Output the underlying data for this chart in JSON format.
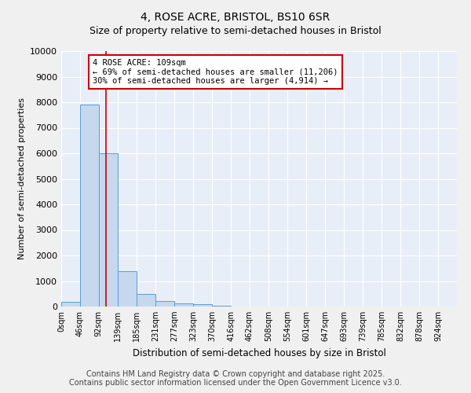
{
  "title": "4, ROSE ACRE, BRISTOL, BS10 6SR",
  "subtitle": "Size of property relative to semi-detached houses in Bristol",
  "xlabel": "Distribution of semi-detached houses by size in Bristol",
  "ylabel": "Number of semi-detached properties",
  "bar_color": "#c5d8ee",
  "bar_edge_color": "#5a9fd4",
  "background_color": "#e8eef8",
  "grid_color": "#ffffff",
  "fig_background": "#f0f0f0",
  "bins": [
    0,
    46,
    92,
    139,
    185,
    231,
    277,
    323,
    370,
    416,
    462,
    508,
    554,
    601,
    647,
    693,
    739,
    785,
    832,
    878,
    924,
    970
  ],
  "bin_labels": [
    "0sqm",
    "46sqm",
    "92sqm",
    "139sqm",
    "185sqm",
    "231sqm",
    "277sqm",
    "323sqm",
    "370sqm",
    "416sqm",
    "462sqm",
    "508sqm",
    "554sqm",
    "601sqm",
    "647sqm",
    "693sqm",
    "739sqm",
    "785sqm",
    "832sqm",
    "878sqm",
    "924sqm"
  ],
  "values": [
    200,
    7900,
    6000,
    1400,
    500,
    220,
    130,
    80,
    25,
    10,
    5,
    3,
    2,
    1,
    1,
    0,
    0,
    0,
    0,
    0,
    0
  ],
  "ylim": [
    0,
    10000
  ],
  "yticks": [
    0,
    1000,
    2000,
    3000,
    4000,
    5000,
    6000,
    7000,
    8000,
    9000,
    10000
  ],
  "property_size": 109,
  "red_line_color": "#cc0000",
  "annotation_line1": "4 ROSE ACRE: 109sqm",
  "annotation_line2": "← 69% of semi-detached houses are smaller (11,206)",
  "annotation_line3": "30% of semi-detached houses are larger (4,914) →",
  "annotation_box_color": "#cc0000",
  "footer_line1": "Contains HM Land Registry data © Crown copyright and database right 2025.",
  "footer_line2": "Contains public sector information licensed under the Open Government Licence v3.0.",
  "footer_fontsize": 7,
  "title_fontsize": 10,
  "subtitle_fontsize": 9
}
